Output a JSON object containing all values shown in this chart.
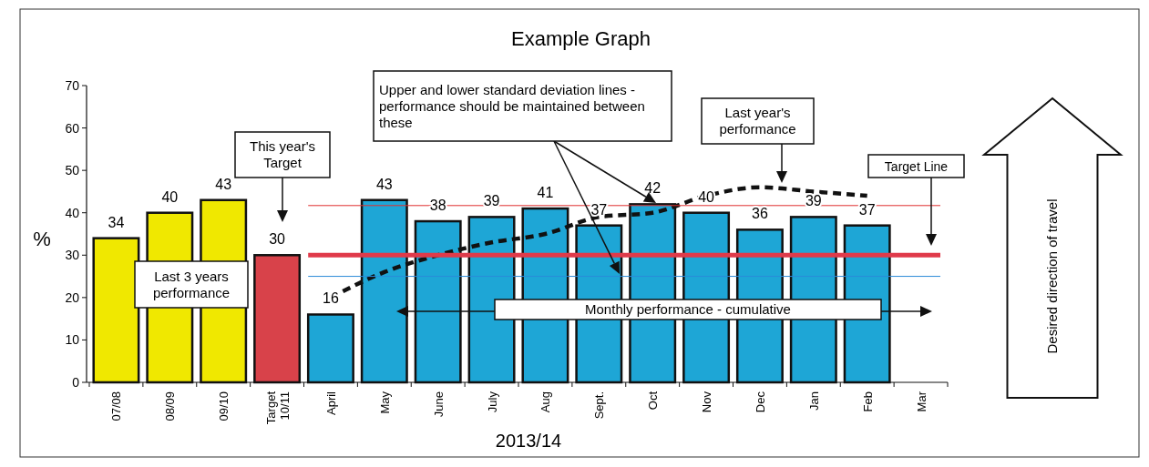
{
  "chart_data": {
    "type": "bar",
    "title": "Example Graph",
    "xlabel": "2013/14",
    "ylabel": "%",
    "categories": [
      "07/08",
      "08/09",
      "09/10",
      "Target 10/11",
      "April",
      "May",
      "June",
      "July",
      "Aug",
      "Sept.",
      "Oct",
      "Nov",
      "Dec",
      "Jan",
      "Feb",
      "Mar"
    ],
    "series": [
      {
        "values": [
          34,
          40,
          43,
          30,
          16,
          43,
          38,
          39,
          41,
          37,
          42,
          40,
          36,
          39,
          37,
          null
        ],
        "value_labels": [
          "34",
          "40",
          "43",
          "30",
          "16",
          "43",
          "38",
          "39",
          "41",
          "37",
          "42",
          "40",
          "36",
          "39",
          "37",
          null
        ],
        "colors": [
          "#f0e800",
          "#f0e800",
          "#f0e800",
          "#d8424a",
          "#1ea6d6",
          "#1ea6d6",
          "#1ea6d6",
          "#1ea6d6",
          "#1ea6d6",
          "#1ea6d6",
          "#1ea6d6",
          "#1ea6d6",
          "#1ea6d6",
          "#1ea6d6",
          "#1ea6d6",
          null
        ]
      },
      {
        "type": "line",
        "color": "#111111",
        "line_style": "dashed",
        "values": [
          null,
          null,
          null,
          null,
          20,
          26,
          30,
          33,
          35,
          39,
          40,
          44,
          46,
          45,
          44,
          null
        ]
      }
    ],
    "ylim": [
      0,
      70
    ],
    "yticks": [
      0,
      10,
      20,
      30,
      40,
      50,
      60,
      70
    ],
    "grid": false,
    "ref_lines": [
      {
        "axis": "y",
        "value": 41.7,
        "color": "#e03030"
      },
      {
        "axis": "y",
        "value": 30,
        "color": "#e03a4a"
      },
      {
        "axis": "y",
        "value": 25,
        "color": "#2a8ad8"
      }
    ],
    "annotations": [
      "This year's Target",
      "Last 3 years performance",
      "Upper and lower standard deviation lines - performance should be maintained between these",
      "Last year's performance",
      "Monthly performance - cumulative",
      "Desired direction of travel",
      "Target Line"
    ]
  }
}
